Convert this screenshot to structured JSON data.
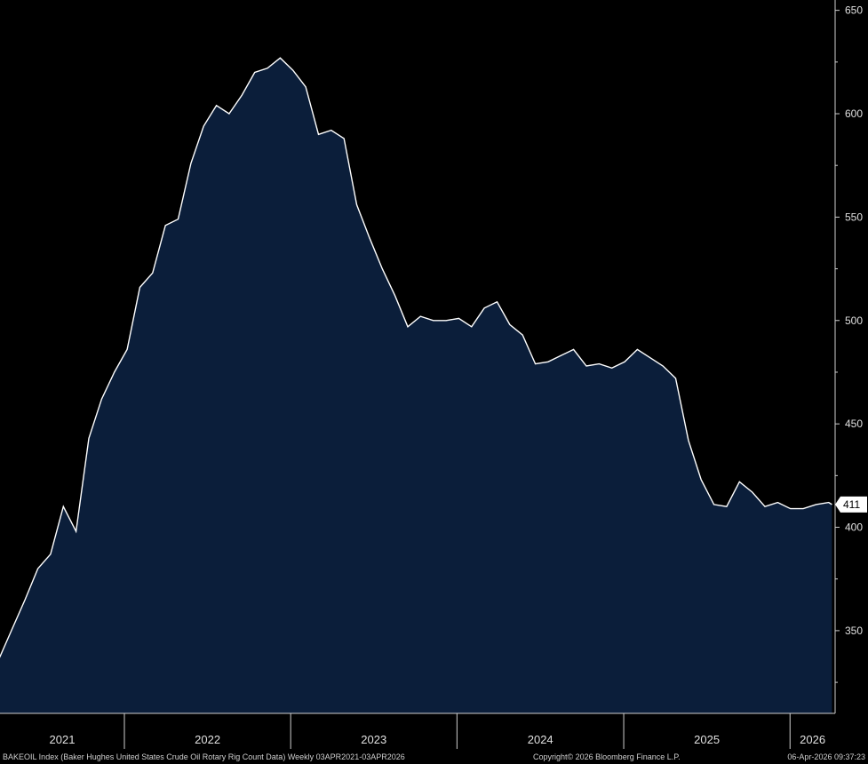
{
  "chart_data": {
    "type": "area",
    "ylim": [
      310,
      655
    ],
    "yticks": [
      350,
      400,
      450,
      500,
      550,
      600,
      650
    ],
    "xlim": [
      "2021-04-03",
      "2026-04-10"
    ],
    "x_labels": [
      "2021",
      "2022",
      "2023",
      "2024",
      "2025",
      "2026"
    ],
    "year_boundaries": [
      "2022-01-01",
      "2023-01-01",
      "2024-01-01",
      "2025-01-01",
      "2026-01-01"
    ],
    "last_value_label": "411",
    "colors": {
      "fill": "#0b1e3a",
      "line": "#ffffff",
      "axis": "#d0d0d0"
    },
    "series": [
      {
        "x": [
          "2021-04-02",
          "2021-04-30",
          "2021-05-28",
          "2021-06-25",
          "2021-07-23",
          "2021-08-20",
          "2021-09-17",
          "2021-10-15",
          "2021-11-12",
          "2021-12-10",
          "2022-01-07",
          "2022-02-04",
          "2022-03-04",
          "2022-04-01",
          "2022-04-29",
          "2022-05-27",
          "2022-06-24",
          "2022-07-22",
          "2022-08-19",
          "2022-09-16",
          "2022-10-14",
          "2022-11-11",
          "2022-12-09",
          "2023-01-06",
          "2023-02-03",
          "2023-03-03",
          "2023-03-31",
          "2023-04-28",
          "2023-05-26",
          "2023-06-23",
          "2023-07-21",
          "2023-08-18",
          "2023-09-15",
          "2023-10-13",
          "2023-11-10",
          "2023-12-08",
          "2024-01-05",
          "2024-02-02",
          "2024-03-01",
          "2024-03-29",
          "2024-04-26",
          "2024-05-24",
          "2024-06-21",
          "2024-07-19",
          "2024-08-16",
          "2024-09-13",
          "2024-10-11",
          "2024-11-08",
          "2024-12-06",
          "2025-01-03",
          "2025-01-31",
          "2025-02-28",
          "2025-03-28",
          "2025-04-25",
          "2025-05-23",
          "2025-06-20",
          "2025-07-18",
          "2025-08-15",
          "2025-09-12",
          "2025-10-10",
          "2025-11-07",
          "2025-12-05",
          "2026-01-02",
          "2026-01-30",
          "2026-02-27",
          "2026-03-27",
          "2026-04-03"
        ],
        "values": [
          337,
          351,
          365,
          380,
          387,
          410,
          398,
          443,
          462,
          475,
          486,
          516,
          523,
          546,
          549,
          576,
          594,
          604,
          600,
          609,
          620,
          622,
          627,
          621,
          613,
          590,
          592,
          588,
          556,
          540,
          525,
          512,
          497,
          502,
          500,
          500,
          501,
          497,
          506,
          509,
          498,
          493,
          479,
          480,
          483,
          486,
          478,
          479,
          477,
          480,
          486,
          482,
          478,
          472,
          442,
          423,
          411,
          410,
          422,
          417,
          410,
          412,
          409,
          409,
          411,
          412,
          411
        ]
      }
    ]
  },
  "footer": {
    "left": "BAKEOIL Index (Baker Hughes United States Crude Oil Rotary Rig Count Data) Weekly 03APR2021-03APR2026",
    "center": "Copyright© 2026 Bloomberg Finance L.P.",
    "right": "06-Apr-2026 09:37:23"
  }
}
